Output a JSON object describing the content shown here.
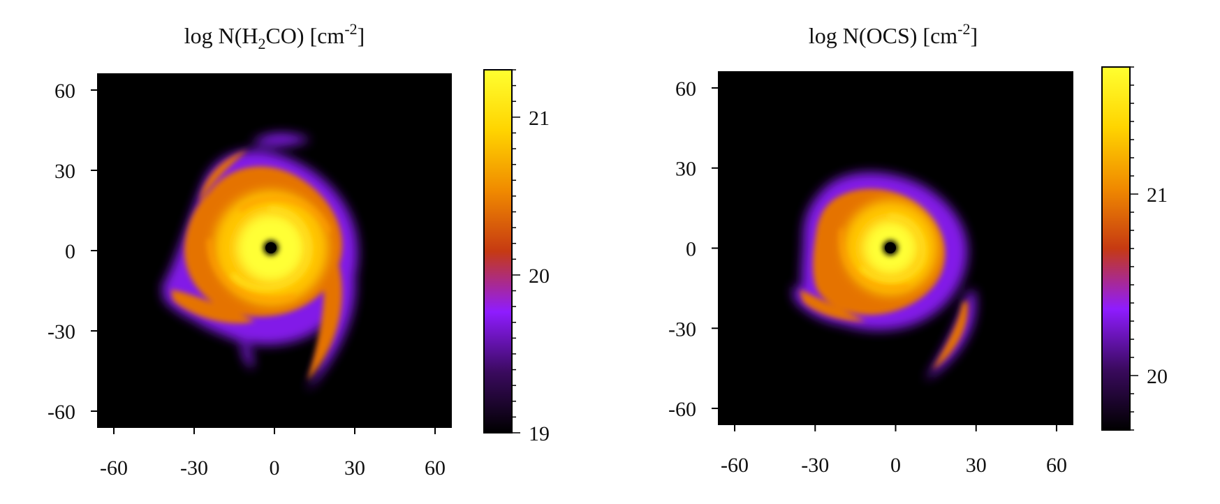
{
  "chart_data": [
    {
      "type": "heatmap",
      "title_parts": {
        "prefix": "log N(H",
        "sub": "2",
        "mid": "CO) [cm",
        "sup": "-2",
        "suffix": "]"
      },
      "xlim": [
        -66,
        66
      ],
      "ylim": [
        -66,
        66
      ],
      "xticks": [
        -60,
        -30,
        0,
        30,
        60
      ],
      "yticks": [
        -60,
        -30,
        0,
        30,
        60
      ],
      "xtick_labels": [
        "-60",
        "-30",
        "0",
        "30",
        "60"
      ],
      "ytick_labels": [
        "-60",
        "-30",
        "0",
        "30",
        "60"
      ],
      "colorbar": {
        "range": [
          19,
          21.3
        ],
        "ticks": [
          19,
          20,
          21
        ],
        "tick_labels": [
          "19",
          "20",
          "21"
        ],
        "colormap": [
          "#000000",
          "#3a0a5e",
          "#8f1cff",
          "#c63a12",
          "#f08a00",
          "#ffd400",
          "#ffff30"
        ]
      },
      "background": "#000000",
      "grid": false,
      "features": [
        {
          "name": "inner-hole",
          "x": 0,
          "y": 0,
          "radius": 3
        },
        {
          "name": "bright-core-ring",
          "x": 0,
          "y": 0,
          "radius": 14,
          "level": 21.2
        },
        {
          "name": "spiral-arm-ne",
          "x": 5,
          "y": 40,
          "level": 19.8
        },
        {
          "name": "spiral-arm-sw",
          "x": -38,
          "y": -18,
          "level": 20.7
        },
        {
          "name": "spiral-arm-se",
          "x": 26,
          "y": -30,
          "level": 20.6
        }
      ]
    },
    {
      "type": "heatmap",
      "title_parts": {
        "prefix": "log N(OCS) [cm",
        "sup": "-2",
        "suffix": "]"
      },
      "xlim": [
        -66,
        66
      ],
      "ylim": [
        -66,
        66
      ],
      "xticks": [
        -60,
        -30,
        0,
        30,
        60
      ],
      "yticks": [
        -60,
        -30,
        0,
        30,
        60
      ],
      "xtick_labels": [
        "-60",
        "-30",
        "0",
        "30",
        "60"
      ],
      "ytick_labels": [
        "-60",
        "-30",
        "0",
        "30",
        "60"
      ],
      "colorbar": {
        "range": [
          19.7,
          21.7
        ],
        "ticks": [
          20,
          21
        ],
        "tick_labels": [
          "20",
          "21"
        ],
        "colormap": [
          "#000000",
          "#3a0a5e",
          "#8f1cff",
          "#c63a12",
          "#f08a00",
          "#ffd400",
          "#ffff30"
        ]
      },
      "background": "#000000",
      "grid": false,
      "features": [
        {
          "name": "inner-hole",
          "x": 0,
          "y": 0,
          "radius": 3
        },
        {
          "name": "bright-core-ring",
          "x": 0,
          "y": 0,
          "radius": 12,
          "level": 21.6
        },
        {
          "name": "spiral-arm-sw",
          "x": -30,
          "y": -20,
          "level": 20.9
        },
        {
          "name": "spiral-arm-se",
          "x": 24,
          "y": -36,
          "level": 20.8
        }
      ]
    }
  ]
}
